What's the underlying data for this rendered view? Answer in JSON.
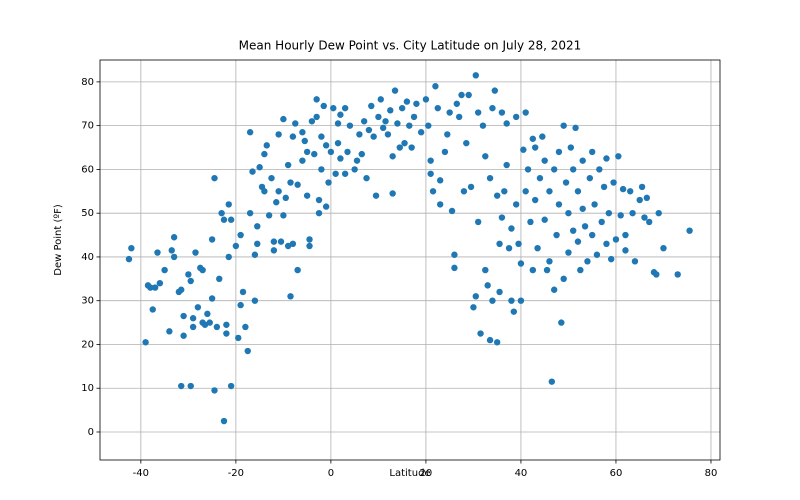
{
  "chart_data": {
    "type": "scatter",
    "title": "Mean Hourly Dew Point vs. City Latitude  on July 28, 2021",
    "x_label": "Latitude",
    "y_label": "Dew Point (ºF)",
    "color": "#1f77b4",
    "grid": true,
    "xlim": [
      -48.6,
      81.9
    ],
    "ylim": [
      -6.4,
      85
    ],
    "xticks": [
      -40,
      -20,
      0,
      20,
      40,
      60,
      80
    ],
    "yticks": [
      0,
      10,
      20,
      30,
      40,
      50,
      60,
      70,
      80
    ],
    "x": [
      -42.5,
      -42,
      -39,
      -38.5,
      -38,
      -37.5,
      -37,
      -36.5,
      -36,
      -35,
      -34,
      -33.5,
      -33,
      -33,
      -32,
      -31.5,
      -31.5,
      -31,
      -31,
      -30,
      -29.5,
      -29.5,
      -29,
      -29,
      -28.5,
      -28,
      -27.5,
      -27,
      -27,
      -26.5,
      -26,
      -25.5,
      -25,
      -25,
      -24.5,
      -24.5,
      -24,
      -23.5,
      -23,
      -22.5,
      -22.5,
      -22,
      -22,
      -21.5,
      -21.5,
      -21,
      -21,
      -20,
      -19.5,
      -19,
      -19,
      -18.5,
      -18,
      -17.5,
      -17,
      -17,
      -16.5,
      -16,
      -16,
      -15.5,
      -15.5,
      -15,
      -14.5,
      -14,
      -14,
      -13.5,
      -13,
      -12.5,
      -12,
      -12,
      -11.5,
      -11,
      -11,
      -10.5,
      -10,
      -10,
      -9.5,
      -9,
      -9,
      -8.5,
      -8.5,
      -8,
      -8,
      -7.5,
      -7,
      -7,
      -6,
      -6,
      -5.5,
      -5,
      -5,
      -4.5,
      -4.5,
      -4,
      -3.5,
      -3,
      -3,
      -2.5,
      -2.5,
      -2,
      -2,
      -1.5,
      -1,
      -1,
      -0.5,
      0,
      0.5,
      1,
      1.5,
      1.5,
      2,
      2,
      3,
      3,
      3.5,
      4,
      5,
      5.5,
      6,
      6.5,
      7,
      7.5,
      8,
      8.5,
      9,
      9.5,
      10,
      10.5,
      11,
      11.5,
      12,
      12.5,
      13,
      13,
      13.5,
      14,
      14.5,
      15,
      15.5,
      16,
      16.5,
      17,
      17.5,
      18,
      19,
      20,
      20.5,
      21,
      21,
      21.5,
      22,
      22.5,
      23,
      23,
      24,
      24.5,
      25,
      25.5,
      26,
      26,
      26.5,
      27,
      27.5,
      28,
      28.5,
      29,
      29.5,
      30,
      30.5,
      30.5,
      31,
      31,
      31.5,
      32,
      32.5,
      32.5,
      33,
      33.5,
      33.5,
      34,
      34,
      34.5,
      35,
      35,
      35.5,
      35.5,
      36,
      36,
      36.5,
      37,
      37,
      37.5,
      38,
      38,
      38.5,
      39,
      39,
      39.5,
      40,
      40,
      40.5,
      41,
      41,
      41.5,
      42,
      42.5,
      42.5,
      43,
      43,
      43.5,
      44,
      44.5,
      45,
      45,
      45.5,
      46,
      46,
      46.5,
      47,
      47,
      47.5,
      48,
      48,
      48.5,
      49,
      49,
      49.5,
      50,
      50,
      50.5,
      51,
      51,
      51.5,
      52,
      52,
      52.5,
      53,
      53,
      53.5,
      54,
      54.5,
      55,
      55,
      55.5,
      56,
      56.5,
      57,
      57.5,
      58,
      58,
      58.5,
      59,
      59.5,
      60,
      60.5,
      61,
      61.5,
      62,
      62,
      63,
      63.5,
      64,
      65,
      65.5,
      66,
      66.5,
      67,
      68,
      68.5,
      69,
      70,
      73,
      75.5
    ],
    "values": [
      39.5,
      42,
      20.5,
      33.5,
      33,
      28,
      33,
      41,
      34,
      37,
      23,
      41.5,
      44.5,
      40,
      32,
      10.5,
      32.5,
      22,
      26.5,
      36,
      10.5,
      34.5,
      24,
      26,
      41,
      28.5,
      37.5,
      37,
      25,
      24.5,
      27,
      25,
      44,
      30.5,
      9.5,
      58,
      24,
      35,
      50,
      2.5,
      48.5,
      24.5,
      22.5,
      40,
      52,
      10.5,
      48.5,
      42.5,
      21.5,
      29,
      45,
      32,
      24,
      18.5,
      50,
      68.5,
      59.5,
      40.5,
      30,
      47,
      43,
      60.5,
      56,
      63.5,
      55,
      65.5,
      49.5,
      58,
      43.5,
      41.5,
      52.5,
      68,
      55,
      43.5,
      71.5,
      49.5,
      53.5,
      42.5,
      61,
      57,
      31,
      67.5,
      43,
      70.5,
      37,
      56.5,
      68.5,
      62,
      66.5,
      54,
      64,
      42.5,
      44,
      71,
      63.5,
      76,
      72,
      50,
      53,
      60,
      67.5,
      74.5,
      51.5,
      65.5,
      57,
      64,
      74,
      59,
      70.5,
      66,
      62.5,
      72.5,
      74,
      59,
      64,
      70,
      60,
      62,
      68,
      63.5,
      71,
      58,
      69,
      74.5,
      67.5,
      54,
      72,
      76,
      69.5,
      71,
      68,
      73.5,
      54.5,
      63,
      78,
      70.5,
      65,
      74,
      66,
      75.5,
      70,
      65,
      72,
      75,
      68.5,
      76,
      70,
      59,
      62,
      55,
      79,
      74,
      57.5,
      52,
      64,
      68,
      73,
      50.5,
      40.5,
      37.5,
      75,
      72,
      77,
      55,
      66,
      77,
      56,
      28.5,
      81.5,
      31,
      73,
      48,
      22.5,
      70,
      37,
      63,
      33.5,
      21,
      58,
      74,
      30,
      78,
      20.5,
      54,
      43,
      32,
      73,
      49,
      55,
      70.5,
      61,
      42,
      30,
      46.5,
      27.5,
      72,
      52,
      43,
      30,
      38.5,
      64.5,
      73,
      55,
      60,
      48,
      67,
      37,
      53,
      65,
      42,
      58,
      67.5,
      48.5,
      62,
      37,
      55,
      39,
      11.5,
      32.5,
      60,
      45,
      64,
      52,
      25,
      70,
      35,
      57,
      41,
      50,
      65,
      46,
      60,
      69.5,
      43.5,
      55,
      37,
      51,
      62,
      47,
      39,
      58,
      64,
      45,
      52,
      40.5,
      60,
      48,
      56,
      43,
      62.5,
      50,
      39.5,
      57,
      44,
      63,
      49.5,
      55.5,
      45,
      41.5,
      55,
      50,
      39,
      53,
      56,
      49,
      53.5,
      48,
      36.5,
      36,
      50,
      42,
      36,
      46
    ]
  }
}
